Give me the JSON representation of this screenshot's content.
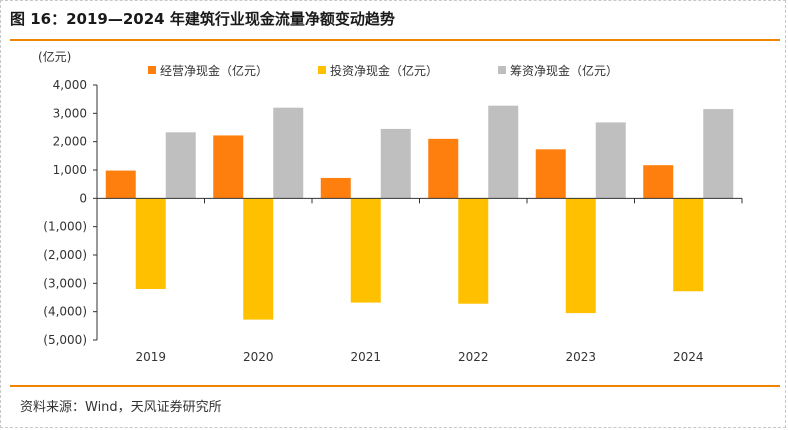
{
  "figure": {
    "title": "图 16：2019—2024 年建筑行业现金流量净额变动趋势",
    "source": "资料来源：Wind，天风证券研究所",
    "accent_color": "#f08300"
  },
  "chart_data": {
    "type": "bar",
    "title": "",
    "unit_label": "(亿元)",
    "xlabel": "",
    "ylabel": "",
    "categories": [
      "2019",
      "2020",
      "2021",
      "2022",
      "2023",
      "2024"
    ],
    "series": [
      {
        "name": "经营净现金（亿元）",
        "color": "#ff7f0e",
        "values": [
          980,
          2220,
          720,
          2100,
          1730,
          1170
        ]
      },
      {
        "name": "投资净现金（亿元）",
        "color": "#ffc000",
        "values": [
          -3200,
          -4280,
          -3680,
          -3720,
          -4050,
          -3280
        ]
      },
      {
        "name": "筹资净现金（亿元）",
        "color": "#bfbfbf",
        "values": [
          2330,
          3200,
          2450,
          3270,
          2680,
          3150
        ]
      }
    ],
    "ylim": [
      -5000,
      4000
    ],
    "yticks": [
      4000,
      3000,
      2000,
      1000,
      0,
      -1000,
      -2000,
      -3000,
      -4000,
      -5000
    ],
    "ytick_labels": [
      "4,000",
      "3,000",
      "2,000",
      "1,000",
      "0",
      "(1,000)",
      "(2,000)",
      "(3,000)",
      "(4,000)",
      "(5,000)"
    ],
    "grid": false,
    "legend_position": "top"
  }
}
